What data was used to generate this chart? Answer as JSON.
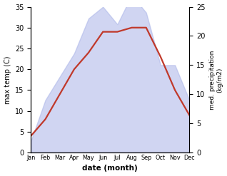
{
  "months": [
    "Jan",
    "Feb",
    "Mar",
    "Apr",
    "May",
    "Jun",
    "Jul",
    "Aug",
    "Sep",
    "Oct",
    "Nov",
    "Dec"
  ],
  "month_x": [
    1,
    2,
    3,
    4,
    5,
    6,
    7,
    8,
    9,
    10,
    11,
    12
  ],
  "temperature": [
    4,
    8,
    14,
    20,
    24,
    29,
    29,
    30,
    30,
    23,
    15,
    9
  ],
  "precipitation": [
    2,
    9,
    13,
    17,
    23,
    25,
    22,
    27,
    24,
    15,
    15,
    9
  ],
  "temp_color": "#c0392b",
  "precip_color": "#aab4e8",
  "precip_alpha": 0.55,
  "temp_ylim": [
    0,
    35
  ],
  "precip_ylim": [
    0,
    25
  ],
  "ylabel_left": "max temp (C)",
  "ylabel_right": "med. precipitation\n(kg/m2)",
  "xlabel": "date (month)",
  "left_yticks": [
    0,
    5,
    10,
    15,
    20,
    25,
    30,
    35
  ],
  "right_yticks": [
    0,
    5,
    10,
    15,
    20,
    25
  ],
  "bg_color": "#ffffff",
  "line_width": 1.6
}
